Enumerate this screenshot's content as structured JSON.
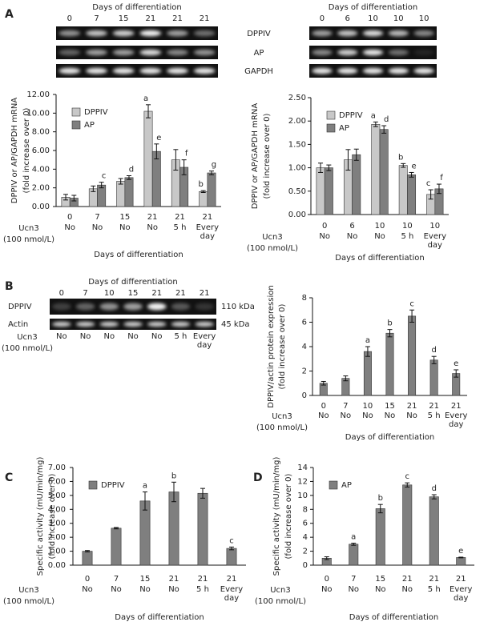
{
  "panel_labels": [
    "A",
    "B",
    "C",
    "D"
  ],
  "blot_rows_A": [
    "DPPIV",
    "AP",
    "GAPDH"
  ],
  "blots": [
    {
      "title": "Days of differentiation",
      "lanes": [
        "0",
        "7",
        "15",
        "21",
        "21",
        "21"
      ]
    },
    {
      "title": "Days of differentiation",
      "lanes": [
        "0",
        "6",
        "10",
        "10",
        "10"
      ]
    },
    {
      "title": "Days of differentiation",
      "lanes": [
        "0",
        "7",
        "10",
        "15",
        "21",
        "21",
        "21"
      ],
      "rows": [
        "DPPIV",
        "Actin"
      ],
      "sizes": [
        "110 kDa",
        "45 kDa"
      ],
      "ucn3_label": [
        "Ucn3",
        "(100 nmol/L)"
      ],
      "ucn3": [
        "No",
        "No",
        "No",
        "No",
        "No",
        "5 h",
        "Every day"
      ]
    }
  ],
  "chart_data": [
    {
      "type": "bar",
      "ylabel": [
        "DPPIV or AP/GAPDH mRNA",
        "(fold increase over 0)"
      ],
      "xlabel": "Days of differentiation",
      "categories": [
        "0",
        "7",
        "15",
        "21",
        "21",
        "21"
      ],
      "ucn3_label": [
        "Ucn3",
        "(100 nmol/L)"
      ],
      "ucn3": [
        "No",
        "No",
        "No",
        "No",
        "5 h",
        "Every day"
      ],
      "ylim": [
        0,
        12
      ],
      "yticks": [
        {
          "value": 0,
          "label": "0.00"
        },
        {
          "value": 2,
          "label": "2.00"
        },
        {
          "value": 4,
          "label": "4.00"
        },
        {
          "value": 6,
          "label": "6.00"
        },
        {
          "value": 8,
          "label": "8.00"
        },
        {
          "value": 10,
          "label": "10.00"
        },
        {
          "value": 12,
          "label": "12.00"
        }
      ],
      "legend": "upper left",
      "series": [
        {
          "name": "DPPIV",
          "color": "#c8c8c8",
          "values": [
            1.0,
            1.9,
            2.7,
            10.2,
            5.0,
            1.6
          ],
          "errors": [
            0.3,
            0.3,
            0.3,
            0.7,
            1.1,
            0.1
          ],
          "sig": [
            null,
            null,
            null,
            "a",
            null,
            "b"
          ]
        },
        {
          "name": "AP",
          "color": "#7f7f7f",
          "values": [
            0.9,
            2.3,
            3.1,
            5.9,
            4.2,
            3.6
          ],
          "errors": [
            0.3,
            0.3,
            0.2,
            0.8,
            0.8,
            0.2
          ],
          "sig": [
            null,
            "c",
            "d",
            "e",
            "f",
            "g"
          ]
        }
      ]
    },
    {
      "type": "bar",
      "ylabel": [
        "DPPIV or AP/GAPDH mRNA",
        "(fold increase over 0)"
      ],
      "xlabel": "Days of differentiation",
      "categories": [
        "0",
        "6",
        "10",
        "10",
        "10"
      ],
      "ucn3_label": [
        "Ucn3",
        "(100 nmol/L)"
      ],
      "ucn3": [
        "No",
        "No",
        "No",
        "5 h",
        "Every day"
      ],
      "ylim": [
        0,
        2.5
      ],
      "yticks": [
        {
          "value": 0,
          "label": "0.00"
        },
        {
          "value": 0.5,
          "label": "0.50"
        },
        {
          "value": 1,
          "label": "1.00"
        },
        {
          "value": 1.5,
          "label": "1.50"
        },
        {
          "value": 2,
          "label": "2.00"
        },
        {
          "value": 2.5,
          "label": "2.50"
        }
      ],
      "legend": "upper left",
      "series": [
        {
          "name": "DPPIV",
          "color": "#c8c8c8",
          "values": [
            1.0,
            1.17,
            1.93,
            1.05,
            0.43
          ],
          "errors": [
            0.1,
            0.22,
            0.05,
            0.04,
            0.1
          ],
          "sig": [
            null,
            null,
            "a",
            "b",
            "c"
          ]
        },
        {
          "name": "AP",
          "color": "#7f7f7f",
          "values": [
            1.0,
            1.28,
            1.82,
            0.85,
            0.55
          ],
          "errors": [
            0.06,
            0.12,
            0.08,
            0.05,
            0.1
          ],
          "sig": [
            null,
            null,
            "d",
            "e",
            "f"
          ]
        }
      ]
    },
    {
      "type": "bar",
      "ylabel": [
        "DPPIV/actin protein expression",
        "(fold increase over 0)"
      ],
      "xlabel": "Days of differentiation",
      "categories": [
        "0",
        "7",
        "10",
        "15",
        "21",
        "21",
        "21"
      ],
      "ucn3_label": [
        "Ucn3",
        "(100 nmol/L)"
      ],
      "ucn3": [
        "No",
        "No",
        "No",
        "No",
        "No",
        "5 h",
        "Every day"
      ],
      "ylim": [
        0,
        8
      ],
      "yticks": [
        0,
        2,
        4,
        6,
        8
      ],
      "color": "#7f7f7f",
      "values": [
        1.0,
        1.4,
        3.6,
        5.1,
        6.5,
        2.9,
        1.8
      ],
      "errors": [
        0.15,
        0.2,
        0.4,
        0.3,
        0.5,
        0.3,
        0.3
      ],
      "sig": [
        null,
        null,
        "a",
        "b",
        "c",
        "d",
        "e"
      ]
    },
    {
      "type": "bar",
      "ylabel": [
        "Specific activity (mU/min/mg)",
        "(fold increase over 0)"
      ],
      "xlabel": "Days of differentiation",
      "categories": [
        "0",
        "7",
        "15",
        "21",
        "21",
        "21"
      ],
      "ucn3_label": [
        "Ucn3",
        "(100 nmol/L)"
      ],
      "ucn3": [
        "No",
        "No",
        "No",
        "No",
        "5 h",
        "Every day"
      ],
      "ylim": [
        0,
        7
      ],
      "yticks": [
        {
          "value": 0,
          "label": "0.00"
        },
        {
          "value": 1,
          "label": "1.00"
        },
        {
          "value": 2,
          "label": "2.00"
        },
        {
          "value": 3,
          "label": "3.00"
        },
        {
          "value": 4,
          "label": "4.00"
        },
        {
          "value": 5,
          "label": "5.00"
        },
        {
          "value": 6,
          "label": "6.00"
        },
        {
          "value": 7,
          "label": "7.00"
        }
      ],
      "legend": "upper left",
      "series": [
        {
          "name": "DPPIV",
          "color": "#7f7f7f",
          "values": [
            1.0,
            2.65,
            4.6,
            5.25,
            5.15,
            1.2
          ],
          "errors": [
            0.05,
            0.05,
            0.65,
            0.7,
            0.35,
            0.1
          ],
          "sig": [
            null,
            null,
            "a",
            "b",
            null,
            "c"
          ]
        }
      ]
    },
    {
      "type": "bar",
      "ylabel": [
        "Specific activity (mU/min/mg)",
        "(fold increase over 0)"
      ],
      "xlabel": "Days of differentiation",
      "categories": [
        "0",
        "7",
        "15",
        "21",
        "21",
        "21"
      ],
      "ucn3_label": [
        "Ucn3",
        "(100 nmol/L)"
      ],
      "ucn3": [
        "No",
        "No",
        "No",
        "No",
        "5 h",
        "Every day"
      ],
      "ylim": [
        0,
        14
      ],
      "yticks": [
        0,
        2,
        4,
        6,
        8,
        10,
        12,
        14
      ],
      "legend": "upper left",
      "series": [
        {
          "name": "AP",
          "color": "#7f7f7f",
          "values": [
            1.0,
            3.0,
            8.1,
            11.5,
            9.8,
            1.1
          ],
          "errors": [
            0.2,
            0.15,
            0.6,
            0.3,
            0.3,
            0.05
          ],
          "sig": [
            null,
            "a",
            "b",
            "c",
            "d",
            "e"
          ]
        }
      ]
    }
  ]
}
